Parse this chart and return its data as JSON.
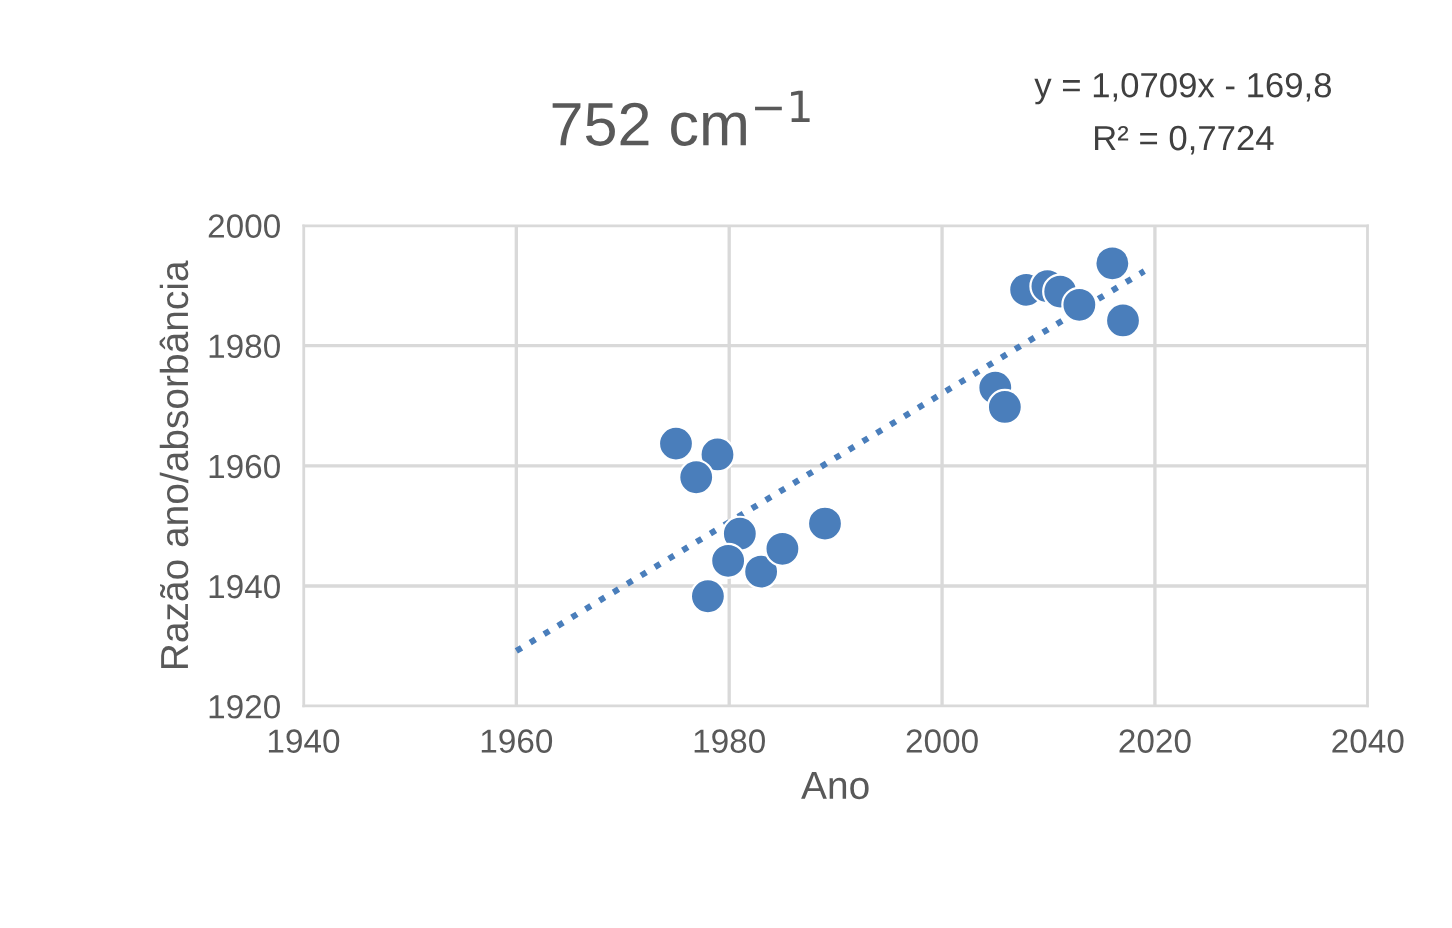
{
  "chart_data": {
    "type": "scatter",
    "title": "752 cm$^{−1}$",
    "xlabel": "Ano",
    "ylabel": "Razão ano/absorbância",
    "annotations": [
      "y = 1,0709x - 169,8",
      "R² = 0,7724"
    ],
    "series": [
      {
        "color": "#4a7ebb",
        "marker": "circle",
        "x": [
          1975.0,
          1978.9,
          1976.9,
          1978.0,
          1981.0,
          1979.9,
          1983.0,
          1985.0,
          1989.0,
          2005.0,
          2005.9,
          2007.9,
          2009.9,
          2011.1,
          2012.9,
          2016.0,
          2017.0
        ],
        "values": [
          1963.7,
          1961.9,
          1958.1,
          1938.3,
          1948.7,
          1944.2,
          1942.4,
          1946.2,
          1950.4,
          1973.0,
          1969.8,
          1989.3,
          1989.9,
          1989.0,
          1986.8,
          1993.7,
          1984.2
        ]
      },
      {
        "type": "line",
        "color": "#4a7ebb",
        "line_style": "dotted",
        "marker": "none",
        "x": [
          1960,
          2019
        ],
        "values": [
          1929.2,
          1992.4
        ]
      }
    ],
    "xlim": [
      1940,
      2040
    ],
    "xticks": [
      1940,
      1960,
      1980,
      2000,
      2020,
      2040
    ],
    "ylim": [
      1920,
      2000
    ],
    "yticks": [
      1920,
      1940,
      1960,
      1980,
      2000
    ],
    "grid": true,
    "legend": false
  }
}
